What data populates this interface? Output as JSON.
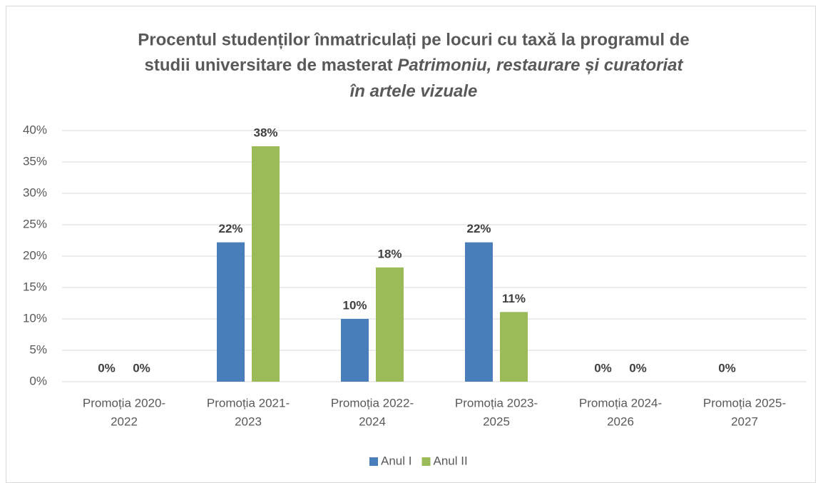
{
  "chart_data": {
    "type": "bar",
    "title": [
      "Procentul studenților înmatriculați pe locuri cu taxă la programul de",
      "studii universitare de masterat ",
      "Patrimoniu, restaurare și curatoriat",
      "în artele vizuale"
    ],
    "categories": [
      [
        "Promoția 2020-",
        "2022"
      ],
      [
        "Promoția 2021-",
        "2023"
      ],
      [
        "Promoția 2022-",
        "2024"
      ],
      [
        "Promoția 2023-",
        "2025"
      ],
      [
        "Promoția 2024-",
        "2026"
      ],
      [
        "Promoția 2025-",
        "2027"
      ]
    ],
    "series": [
      {
        "name": "Anul I",
        "color": "#4a7ebb",
        "values": [
          0,
          22.2,
          10,
          22.2,
          0,
          0
        ],
        "value_labels": [
          "0%",
          "22%",
          "10%",
          "22%",
          "0%",
          "0%"
        ]
      },
      {
        "name": "Anul II",
        "color": "#9bbb59",
        "values": [
          0,
          37.5,
          18.2,
          11.1,
          0,
          null
        ],
        "value_labels": [
          "0%",
          "38%",
          "18%",
          "11%",
          "0%",
          null
        ]
      }
    ],
    "ylim": [
      0,
      40
    ],
    "yticks": [
      {
        "value": 0,
        "label": "0%"
      },
      {
        "value": 5,
        "label": "5%"
      },
      {
        "value": 10,
        "label": "10%"
      },
      {
        "value": 15,
        "label": "15%"
      },
      {
        "value": 20,
        "label": "20%"
      },
      {
        "value": 25,
        "label": "25%"
      },
      {
        "value": 30,
        "label": "30%"
      },
      {
        "value": 35,
        "label": "35%"
      },
      {
        "value": 40,
        "label": "40%"
      }
    ],
    "grid": true,
    "legend": "bottom"
  }
}
